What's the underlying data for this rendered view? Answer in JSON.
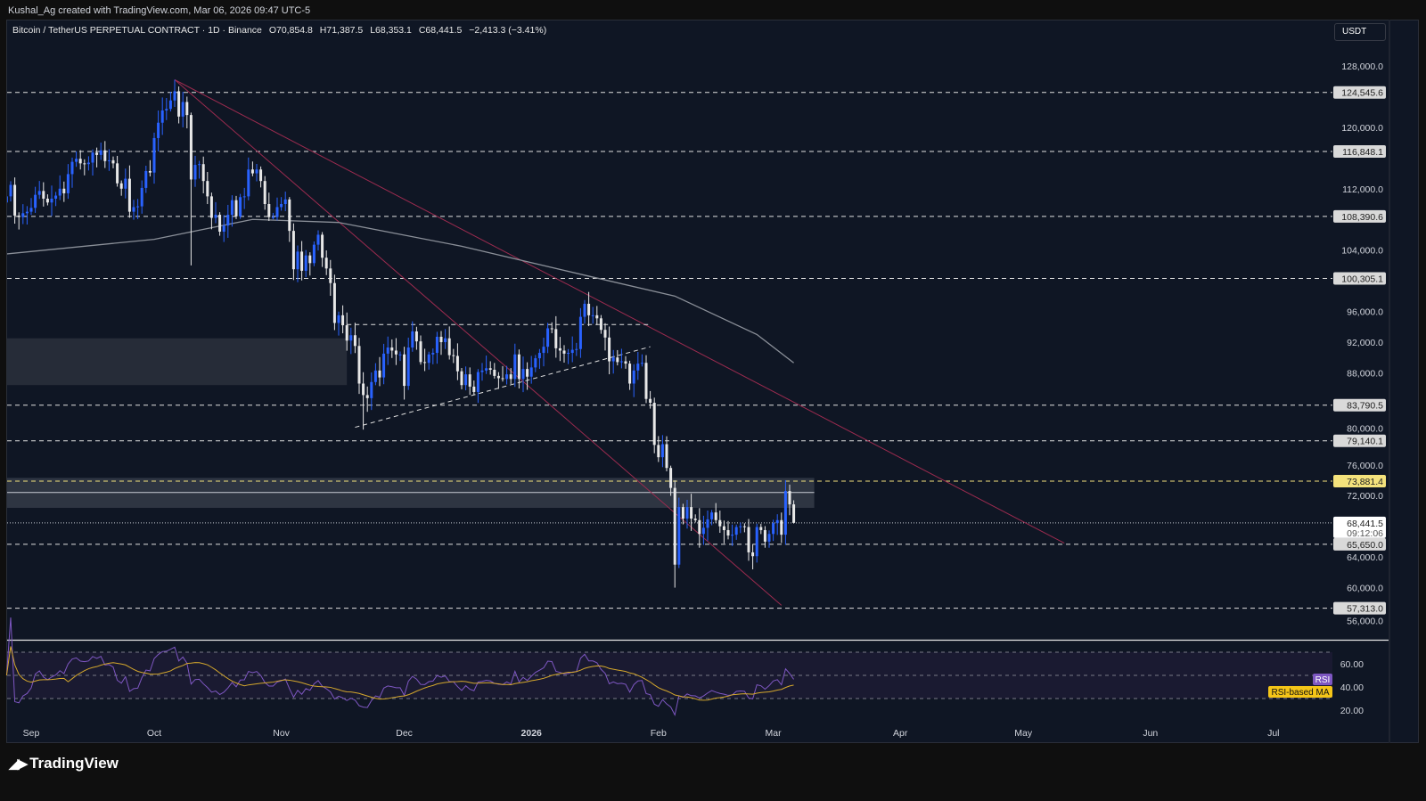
{
  "credit": "Kushal_Ag created with TradingView.com, Mar 06, 2026 09:47 UTC-5",
  "header": {
    "symbol": "Bitcoin / TetherUS PERPETUAL CONTRACT · 1D · Binance",
    "open": "O70,854.8",
    "high": "H71,387.5",
    "low": "L68,353.1",
    "close": "C68,441.5",
    "change": "−2,413.3 (−3.41%)"
  },
  "currency_button": "USDT",
  "brand": "TradingView",
  "colors": {
    "up": "#2962ff",
    "down": "#e8e8e8",
    "background": "#0f1624",
    "trendline": "#9c2b4f",
    "ma": "#8a8f98",
    "rsi": "#7e57c2",
    "rsi_ma": "#d4a72c",
    "highlight_level": "#f4e27c"
  },
  "chart_data": {
    "type": "candlestick",
    "interval": "1D",
    "y_axis_ticks": [
      "128,000.0",
      "120,000.0",
      "112,000.0",
      "104,000.0",
      "96,000.0",
      "92,000.0",
      "88,000.0",
      "80,000.0",
      "76,000.0",
      "72,000.0",
      "64,000.0",
      "60,000.0",
      "56,000.0"
    ],
    "ylim": [
      54000,
      131000
    ],
    "x_axis_ticks": [
      "Sep",
      "Oct",
      "Nov",
      "Dec",
      "2026",
      "Feb",
      "Mar",
      "Apr",
      "May",
      "Jun",
      "Jul"
    ],
    "candles": [
      {
        "month": "2025-08",
        "first_day": 26,
        "closes": [
          111000,
          112500,
          108500,
          108300,
          108800,
          109000
        ]
      },
      {
        "month": "2025-09",
        "first_day": 1,
        "closes": [
          109500,
          111200,
          111700,
          110700,
          110200,
          110700,
          111100,
          112000,
          111400,
          113900,
          115500,
          115900,
          115300,
          115200,
          115400,
          116700,
          116400,
          117000,
          115600,
          115700,
          115300,
          112700,
          112000,
          113300,
          109000,
          109600,
          109700,
          112100,
          114300,
          114100
        ]
      },
      {
        "month": "2025-10",
        "first_day": 1,
        "closes": [
          118600,
          120600,
          122200,
          122400,
          123500,
          124700,
          121400,
          123300,
          121600,
          113200,
          115100,
          115200,
          113000,
          111000,
          108200,
          108600,
          106400,
          107200,
          108600,
          110500,
          108400,
          110900,
          111000,
          114500,
          114000,
          114500,
          113000,
          110000,
          108300,
          108300,
          109600
        ]
      },
      {
        "month": "2025-11",
        "first_day": 1,
        "closes": [
          110000,
          110600,
          106500,
          101500,
          103800,
          101300,
          103300,
          102300,
          104700,
          106000,
          103000,
          101600,
          99700,
          94500,
          95500,
          94200,
          92200,
          92900,
          91500,
          86600,
          85100,
          84700,
          86800,
          88300,
          87400,
          90500,
          91300,
          90900,
          90400,
          90400
        ]
      },
      {
        "month": "2025-12",
        "first_day": 1,
        "closes": [
          86300,
          91300,
          93400,
          92100,
          89400,
          89300,
          90400,
          90600,
          92700,
          92000,
          92500,
          90300,
          90200,
          88200,
          86400,
          87800,
          86200,
          85500,
          88100,
          88300,
          88600,
          88400,
          87600,
          87300,
          87200,
          87800,
          87200,
          90400,
          87200,
          88500,
          87500
        ]
      },
      {
        "month": "2026-01",
        "first_day": 1,
        "closes": [
          88700,
          89900,
          90600,
          91400,
          93800,
          93700,
          91200,
          90900,
          90500,
          90600,
          91000,
          91100,
          95300,
          97000,
          95500,
          95500,
          95100,
          93600,
          92600,
          89500,
          90000,
          89400,
          89500,
          89200,
          86600,
          88300,
          89200,
          89300,
          84600,
          84100,
          78600
        ]
      },
      {
        "month": "2026-02",
        "first_day": 1,
        "closes": [
          77000,
          78700,
          75600,
          73000,
          63000,
          70500,
          69000,
          70500,
          69000,
          68800,
          67000,
          67800,
          68900,
          69800,
          68800,
          68000,
          67500,
          66800,
          66900,
          67900,
          68000,
          67900,
          64600,
          64100,
          67900,
          67500,
          66000,
          67000
        ]
      },
      {
        "month": "2026-03",
        "first_day": 1,
        "closes": [
          68400,
          68800,
          66900,
          72600,
          70854.8,
          68441.5
        ]
      }
    ],
    "notable_extremes": {
      "2025-10-06": 126200,
      "2025-10-10": 102000,
      "2025-11-21": 80600,
      "2026-02-05": 60000,
      "2026-03-04": 74000
    },
    "moving_average": [
      {
        "date": "2025-08-26",
        "value": 103500
      },
      {
        "date": "2025-10-01",
        "value": 105400
      },
      {
        "date": "2025-10-25",
        "value": 108000
      },
      {
        "date": "2025-11-15",
        "value": 107600
      },
      {
        "date": "2025-12-15",
        "value": 104500
      },
      {
        "date": "2026-01-15",
        "value": 100600
      },
      {
        "date": "2026-02-05",
        "value": 98000
      },
      {
        "date": "2026-02-25",
        "value": 93000
      },
      {
        "date": "2026-03-06",
        "value": 89300
      }
    ],
    "horizontal_levels": [
      {
        "label": "124,545.6",
        "value": 124545.6
      },
      {
        "label": "116,848.1",
        "value": 116848.1
      },
      {
        "label": "108,390.6",
        "value": 108390.6
      },
      {
        "label": "100,305.1",
        "value": 100305.1
      },
      {
        "label": "83,790.5",
        "value": 83790.5
      },
      {
        "label": "79,140.1",
        "value": 79140.1
      },
      {
        "label": "73,881.4",
        "value": 73881.4,
        "highlight": true
      },
      {
        "label": "65,650.0",
        "value": 65650.0
      },
      {
        "label": "57,313.0",
        "value": 57313.0
      }
    ],
    "last_price": {
      "label": "68,441.5",
      "countdown": "09:12:06",
      "value": 68441.5
    },
    "zones": [
      {
        "from_date": "2025-08-26",
        "to_date": "2025-11-17",
        "top": 92500,
        "bottom": 86400
      },
      {
        "from_date": "2025-08-26",
        "to_date": "2026-03-11",
        "top": 74300,
        "bottom": 70400,
        "mid": 72400
      }
    ],
    "trendlines": [
      {
        "from": [
          "2025-10-06",
          126200
        ],
        "to": [
          "2026-05-11",
          65800
        ],
        "style": "solid"
      },
      {
        "from": [
          "2025-10-06",
          126200
        ],
        "to": [
          "2026-03-03",
          57700
        ],
        "style": "solid"
      },
      {
        "from": [
          "2025-11-19",
          80900
        ],
        "to": [
          "2026-01-30",
          91400
        ],
        "style": "dashed"
      },
      {
        "from": [
          "2025-11-17",
          94300
        ],
        "to": [
          "2026-01-30",
          94300
        ],
        "style": "dashed"
      }
    ],
    "rsi": {
      "label": "RSI",
      "ma_label": "RSI-based MA",
      "ticks": [
        "60.00",
        "40.00",
        "20.00"
      ],
      "bands": [
        70,
        50,
        30
      ]
    }
  }
}
